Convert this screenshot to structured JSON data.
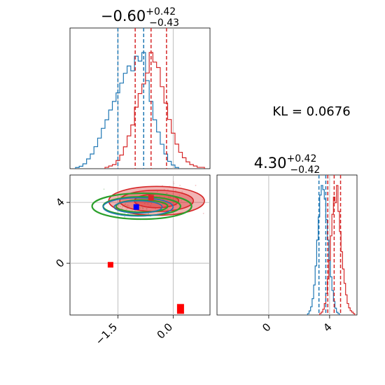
{
  "chart_data": [
    {
      "type": "histogram",
      "panel": "marginal-param-1",
      "title": {
        "value": "−0.60",
        "upper": "+0.42",
        "lower": "−0.43"
      },
      "xlim": [
        -2.8,
        1.0
      ],
      "series": [
        {
          "name": "",
          "color": "#1f77b4",
          "bins": [
            -2.6,
            -2.5,
            -2.4,
            -2.3,
            -2.2,
            -2.1,
            -2.0,
            -1.9,
            -1.8,
            -1.7,
            -1.6,
            -1.5,
            -1.4,
            -1.3,
            -1.2,
            -1.1,
            -1.0,
            -0.9,
            -0.8,
            -0.7,
            -0.6,
            -0.5,
            -0.4,
            -0.3,
            -0.2,
            -0.1,
            0.0,
            0.1
          ],
          "values": [
            0.01,
            0.02,
            0.04,
            0.08,
            0.12,
            0.18,
            0.25,
            0.33,
            0.4,
            0.48,
            0.55,
            0.62,
            0.7,
            0.78,
            0.84,
            0.8,
            0.92,
            0.88,
            0.95,
            0.72,
            0.55,
            0.4,
            0.3,
            0.2,
            0.12,
            0.06,
            0.03,
            0.01
          ],
          "quantiles": [
            -1.5,
            -0.8
          ]
        },
        {
          "name": "",
          "color": "#d62728",
          "bins": [
            -1.8,
            -1.7,
            -1.6,
            -1.5,
            -1.4,
            -1.3,
            -1.2,
            -1.1,
            -1.0,
            -0.9,
            -0.8,
            -0.7,
            -0.6,
            -0.5,
            -0.4,
            -0.3,
            -0.2,
            -0.1,
            0.0,
            0.1,
            0.2,
            0.3,
            0.4,
            0.5,
            0.6,
            0.7,
            0.8
          ],
          "values": [
            0.01,
            0.02,
            0.03,
            0.06,
            0.1,
            0.16,
            0.24,
            0.32,
            0.45,
            0.55,
            0.62,
            0.7,
            0.85,
            0.78,
            0.74,
            0.6,
            0.48,
            0.36,
            0.26,
            0.18,
            0.12,
            0.08,
            0.05,
            0.03,
            0.02,
            0.01,
            0.01
          ],
          "quantiles": [
            -1.03,
            -0.6,
            -0.18
          ]
        }
      ],
      "grid": true
    },
    {
      "type": "scatter-contour",
      "panel": "joint",
      "xlim": [
        -2.8,
        1.0
      ],
      "ylim": [
        -3.4,
        5.8
      ],
      "xticks": [
        "−1.5",
        "0.0"
      ],
      "yticks": [
        "0",
        "4"
      ],
      "xtick_values": [
        -1.5,
        0.0
      ],
      "ytick_values": [
        0,
        4
      ],
      "markers": [
        {
          "x": -1.0,
          "y": 3.7,
          "color": "#0000ff",
          "shape": "square"
        },
        {
          "x": -1.7,
          "y": -0.1,
          "color": "#ff0000",
          "shape": "square"
        },
        {
          "x": 0.2,
          "y": -3.0,
          "color": "#ff0000",
          "shape": "square"
        },
        {
          "x": -0.6,
          "y": 4.3,
          "color": "#d62728",
          "shape": "square"
        }
      ],
      "contours": [
        {
          "color": "#d62728",
          "filled": true,
          "cx": -0.45,
          "cy": 4.1,
          "rx": [
            1.3,
            1.0,
            0.6
          ],
          "ry": [
            0.95,
            0.7,
            0.45
          ]
        },
        {
          "color": "#2ca02c",
          "filled": false,
          "cx": -0.85,
          "cy": 3.75,
          "rx": [
            1.35,
            1.05,
            0.7
          ],
          "ry": [
            0.85,
            0.62,
            0.4
          ]
        },
        {
          "color": "#1f77b4",
          "filled": false,
          "cx": -0.95,
          "cy": 3.7,
          "rx": [
            0.95,
            0.65
          ],
          "ry": [
            0.6,
            0.4
          ]
        }
      ],
      "grid": true
    },
    {
      "type": "histogram",
      "panel": "marginal-param-2",
      "title": {
        "value": "4.30",
        "upper": "+0.42",
        "lower": "−0.42"
      },
      "xlim": [
        -3.4,
        5.8
      ],
      "xticks": [
        "0",
        "4"
      ],
      "xtick_values": [
        0,
        4
      ],
      "series": [
        {
          "name": "",
          "color": "#1f77b4",
          "bins": [
            2.6,
            2.7,
            2.8,
            2.9,
            3.0,
            3.1,
            3.2,
            3.3,
            3.4,
            3.5,
            3.6,
            3.7,
            3.8,
            3.9,
            4.0,
            4.1,
            4.2,
            4.3,
            4.4,
            4.5,
            4.6
          ],
          "values": [
            0.01,
            0.03,
            0.06,
            0.12,
            0.22,
            0.36,
            0.55,
            0.72,
            0.88,
            0.95,
            0.92,
            0.85,
            0.7,
            0.55,
            0.4,
            0.28,
            0.18,
            0.1,
            0.05,
            0.02,
            0.01
          ],
          "quantiles": [
            3.3,
            3.75
          ]
        },
        {
          "name": "",
          "color": "#d62728",
          "bins": [
            3.4,
            3.5,
            3.6,
            3.7,
            3.8,
            3.9,
            4.0,
            4.1,
            4.2,
            4.3,
            4.4,
            4.5,
            4.6,
            4.7,
            4.8,
            4.9,
            5.0,
            5.1,
            5.2,
            5.3,
            5.4,
            5.5,
            5.6
          ],
          "values": [
            0.01,
            0.02,
            0.04,
            0.08,
            0.15,
            0.25,
            0.38,
            0.55,
            0.7,
            0.82,
            0.78,
            0.9,
            0.72,
            0.58,
            0.44,
            0.32,
            0.22,
            0.14,
            0.08,
            0.05,
            0.03,
            0.02,
            0.01
          ],
          "quantiles": [
            3.88,
            4.3,
            4.72
          ]
        }
      ],
      "grid": true
    }
  ],
  "annotation": {
    "kl_text": "KL = 0.0676"
  }
}
